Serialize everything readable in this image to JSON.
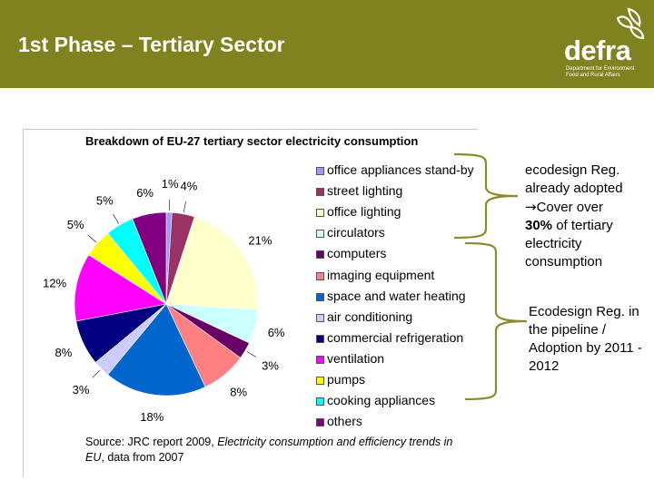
{
  "slide": {
    "title": "1st Phase – Tertiary Sector",
    "logo_word": "defra",
    "logo_subtitle": "Department for Environment Food and Rural Affairs"
  },
  "colors": {
    "header_bg": "#80821f",
    "bracket": "#8b8b2e"
  },
  "source": {
    "prefix": "Source: JRC report 2009, ",
    "italic": "Electricity consumption and efficiency trends in EU",
    "suffix": ", data from 2007"
  },
  "notes": {
    "adopted_line1": "ecodesign Reg. already adopted",
    "adopted_arrow": "→",
    "adopted_line2": "Cover over",
    "adopted_bold": "30%",
    "adopted_line3": " of tertiary electricity consumption",
    "pipeline": "Ecodesign Reg. in the pipeline / Adoption by 2011 - 2012"
  },
  "chart_data": {
    "type": "pie",
    "title": "Breakdown of EU-27 tertiary sector electricity consumption",
    "slices": [
      {
        "name": "office appliances stand-by",
        "value": 1,
        "label": "1%",
        "color": "#9999ff"
      },
      {
        "name": "street lighting",
        "value": 4,
        "label": "4%",
        "color": "#993366"
      },
      {
        "name": "office lighting",
        "value": 21,
        "label": "21%",
        "color": "#ffffcc"
      },
      {
        "name": "circulators",
        "value": 6,
        "label": "6%",
        "color": "#ccffff"
      },
      {
        "name": "computers",
        "value": 3,
        "label": "3%",
        "color": "#660066"
      },
      {
        "name": "imaging equipment",
        "value": 8,
        "label": "8%",
        "color": "#ff8080"
      },
      {
        "name": "space and water heating",
        "value": 18,
        "label": "18%",
        "color": "#0066cc"
      },
      {
        "name": "air conditioning",
        "value": 3,
        "label": "3%",
        "color": "#ccccff"
      },
      {
        "name": "commercial refrigeration",
        "value": 8,
        "label": "8%",
        "color": "#000080"
      },
      {
        "name": "ventilation",
        "value": 12,
        "label": "12%",
        "color": "#ff00ff"
      },
      {
        "name": "pumps",
        "value": 5,
        "label": "5%",
        "color": "#ffff00"
      },
      {
        "name": "cooking appliances",
        "value": 5,
        "label": "5%",
        "color": "#00ffff"
      },
      {
        "name": "others",
        "value": 6,
        "label": "6%",
        "color": "#800080"
      }
    ],
    "legend_position": "right"
  }
}
